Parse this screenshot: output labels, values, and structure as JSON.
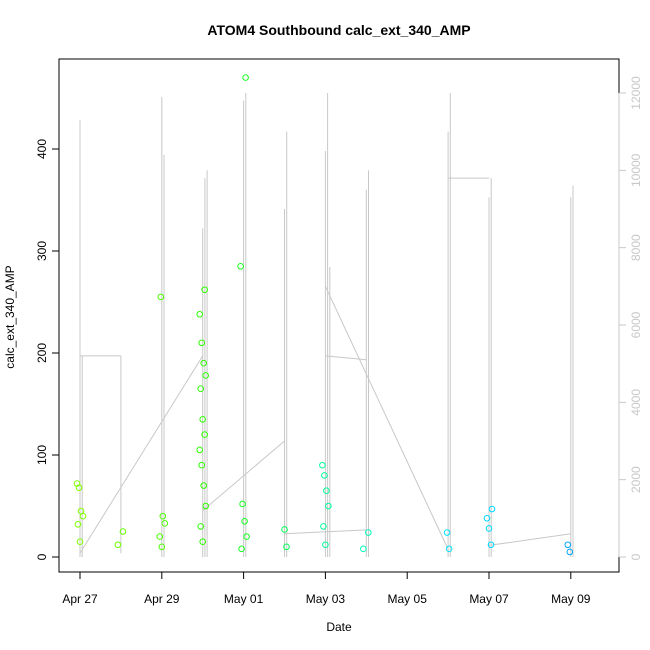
{
  "chart_data": {
    "type": "scatter",
    "title": "ATOM4 Southbound calc_ext_340_AMP",
    "xlabel": "Date",
    "ylabel": "calc_ext_340_AMP",
    "x_ticks": [
      "Apr 27",
      "Apr 29",
      "May 01",
      "May 03",
      "May 05",
      "May 07",
      "May 09"
    ],
    "y_ticks": [
      "0",
      "100",
      "200",
      "300",
      "400"
    ],
    "y2_ticks": [
      "0",
      "2000",
      "4000",
      "6000",
      "8000",
      "10000",
      "12000"
    ],
    "ylim": [
      0,
      470
    ],
    "y2lim": [
      0,
      12000
    ],
    "grid": false,
    "series": [
      {
        "marker": "open-circle",
        "values": [
          {
            "x": "Apr 27",
            "y": 72
          },
          {
            "x": "Apr 27",
            "y": 68
          },
          {
            "x": "Apr 27",
            "y": 45
          },
          {
            "x": "Apr 27",
            "y": 40
          },
          {
            "x": "Apr 27",
            "y": 32
          },
          {
            "x": "Apr 27",
            "y": 15
          },
          {
            "x": "Apr 28",
            "y": 25
          },
          {
            "x": "Apr 28",
            "y": 12
          },
          {
            "x": "Apr 29",
            "y": 255
          },
          {
            "x": "Apr 29",
            "y": 40
          },
          {
            "x": "Apr 29",
            "y": 33
          },
          {
            "x": "Apr 29",
            "y": 20
          },
          {
            "x": "Apr 29",
            "y": 10
          },
          {
            "x": "Apr 30",
            "y": 262
          },
          {
            "x": "Apr 30",
            "y": 238
          },
          {
            "x": "Apr 30",
            "y": 210
          },
          {
            "x": "Apr 30",
            "y": 190
          },
          {
            "x": "Apr 30",
            "y": 178
          },
          {
            "x": "Apr 30",
            "y": 165
          },
          {
            "x": "Apr 30",
            "y": 135
          },
          {
            "x": "Apr 30",
            "y": 120
          },
          {
            "x": "Apr 30",
            "y": 105
          },
          {
            "x": "Apr 30",
            "y": 90
          },
          {
            "x": "Apr 30",
            "y": 70
          },
          {
            "x": "Apr 30",
            "y": 50
          },
          {
            "x": "Apr 30",
            "y": 30
          },
          {
            "x": "Apr 30",
            "y": 15
          },
          {
            "x": "May 01",
            "y": 470
          },
          {
            "x": "May 01",
            "y": 285
          },
          {
            "x": "May 01",
            "y": 52
          },
          {
            "x": "May 01",
            "y": 35
          },
          {
            "x": "May 01",
            "y": 20
          },
          {
            "x": "May 01",
            "y": 8
          },
          {
            "x": "May 02",
            "y": 27
          },
          {
            "x": "May 02",
            "y": 10
          },
          {
            "x": "May 03",
            "y": 90
          },
          {
            "x": "May 03",
            "y": 80
          },
          {
            "x": "May 03",
            "y": 65
          },
          {
            "x": "May 03",
            "y": 50
          },
          {
            "x": "May 03",
            "y": 30
          },
          {
            "x": "May 03",
            "y": 12
          },
          {
            "x": "May 04",
            "y": 24
          },
          {
            "x": "May 04",
            "y": 8
          },
          {
            "x": "May 06",
            "y": 24
          },
          {
            "x": "May 06",
            "y": 8
          },
          {
            "x": "May 07",
            "y": 47
          },
          {
            "x": "May 07",
            "y": 38
          },
          {
            "x": "May 07",
            "y": 28
          },
          {
            "x": "May 07",
            "y": 12
          },
          {
            "x": "May 09",
            "y": 12
          },
          {
            "x": "May 09",
            "y": 5
          }
        ]
      },
      {
        "type": "line",
        "color": "#c8c8c8",
        "axis": "right"
      }
    ]
  }
}
